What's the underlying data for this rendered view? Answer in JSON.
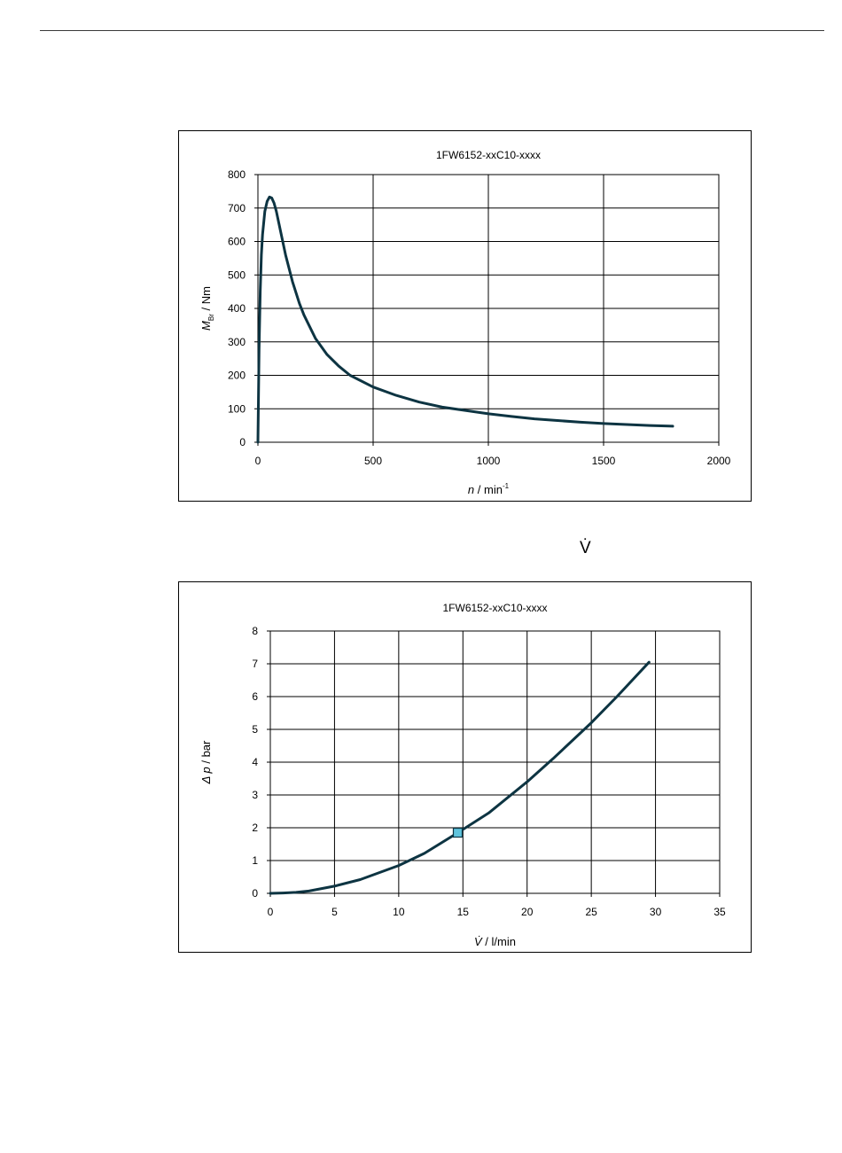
{
  "page": {
    "floating_symbol": "V̇"
  },
  "chart_data": [
    {
      "type": "line",
      "title": "1FW6152-xxC10-xxxx",
      "xlabel": {
        "symbol": "n",
        "text": " / min",
        "superscript": "-1"
      },
      "ylabel": {
        "symbol": "M",
        "subscript": "Br",
        "text": " / Nm"
      },
      "xlim": [
        0,
        2000
      ],
      "ylim": [
        0,
        800
      ],
      "x_ticks": [
        0,
        500,
        1000,
        1500,
        2000
      ],
      "y_ticks": [
        0,
        100,
        200,
        300,
        400,
        500,
        600,
        700,
        800
      ],
      "grid": true,
      "line_color": "#0d3442",
      "series": [
        {
          "x": [
            0,
            5,
            10,
            15,
            20,
            30,
            40,
            50,
            60,
            70,
            80,
            100,
            120,
            150,
            180,
            200,
            250,
            300,
            350,
            400,
            500,
            600,
            700,
            800,
            900,
            1000,
            1100,
            1200,
            1300,
            1400,
            1500,
            1600,
            1700,
            1800
          ],
          "y": [
            0,
            280,
            450,
            560,
            620,
            690,
            720,
            733,
            730,
            715,
            690,
            625,
            560,
            480,
            415,
            380,
            310,
            262,
            228,
            200,
            165,
            140,
            120,
            105,
            95,
            85,
            77,
            70,
            65,
            60,
            56,
            53,
            50,
            48
          ]
        }
      ]
    },
    {
      "type": "line",
      "title": "1FW6152-xxC10-xxxx",
      "xlabel": {
        "symbol": "V̇",
        "text": " / l/min"
      },
      "ylabel": {
        "symbol": "Δ p",
        "text": " / bar"
      },
      "xlim": [
        0,
        35
      ],
      "ylim": [
        0,
        8
      ],
      "x_ticks": [
        0,
        5,
        10,
        15,
        20,
        25,
        30,
        35
      ],
      "y_ticks": [
        0,
        1,
        2,
        3,
        4,
        5,
        6,
        7,
        8
      ],
      "grid": true,
      "line_color": "#0d3442",
      "marker_color": "#5fc4dd",
      "series": [
        {
          "x": [
            0,
            1,
            2,
            3,
            5,
            7,
            10,
            12,
            14.6,
            17,
            20,
            22,
            25,
            27,
            29.5
          ],
          "y": [
            0,
            0.01,
            0.03,
            0.07,
            0.22,
            0.42,
            0.85,
            1.22,
            1.85,
            2.45,
            3.4,
            4.1,
            5.2,
            6.0,
            7.05
          ]
        }
      ],
      "highlight_point": {
        "x": 14.6,
        "y": 1.85
      }
    }
  ]
}
